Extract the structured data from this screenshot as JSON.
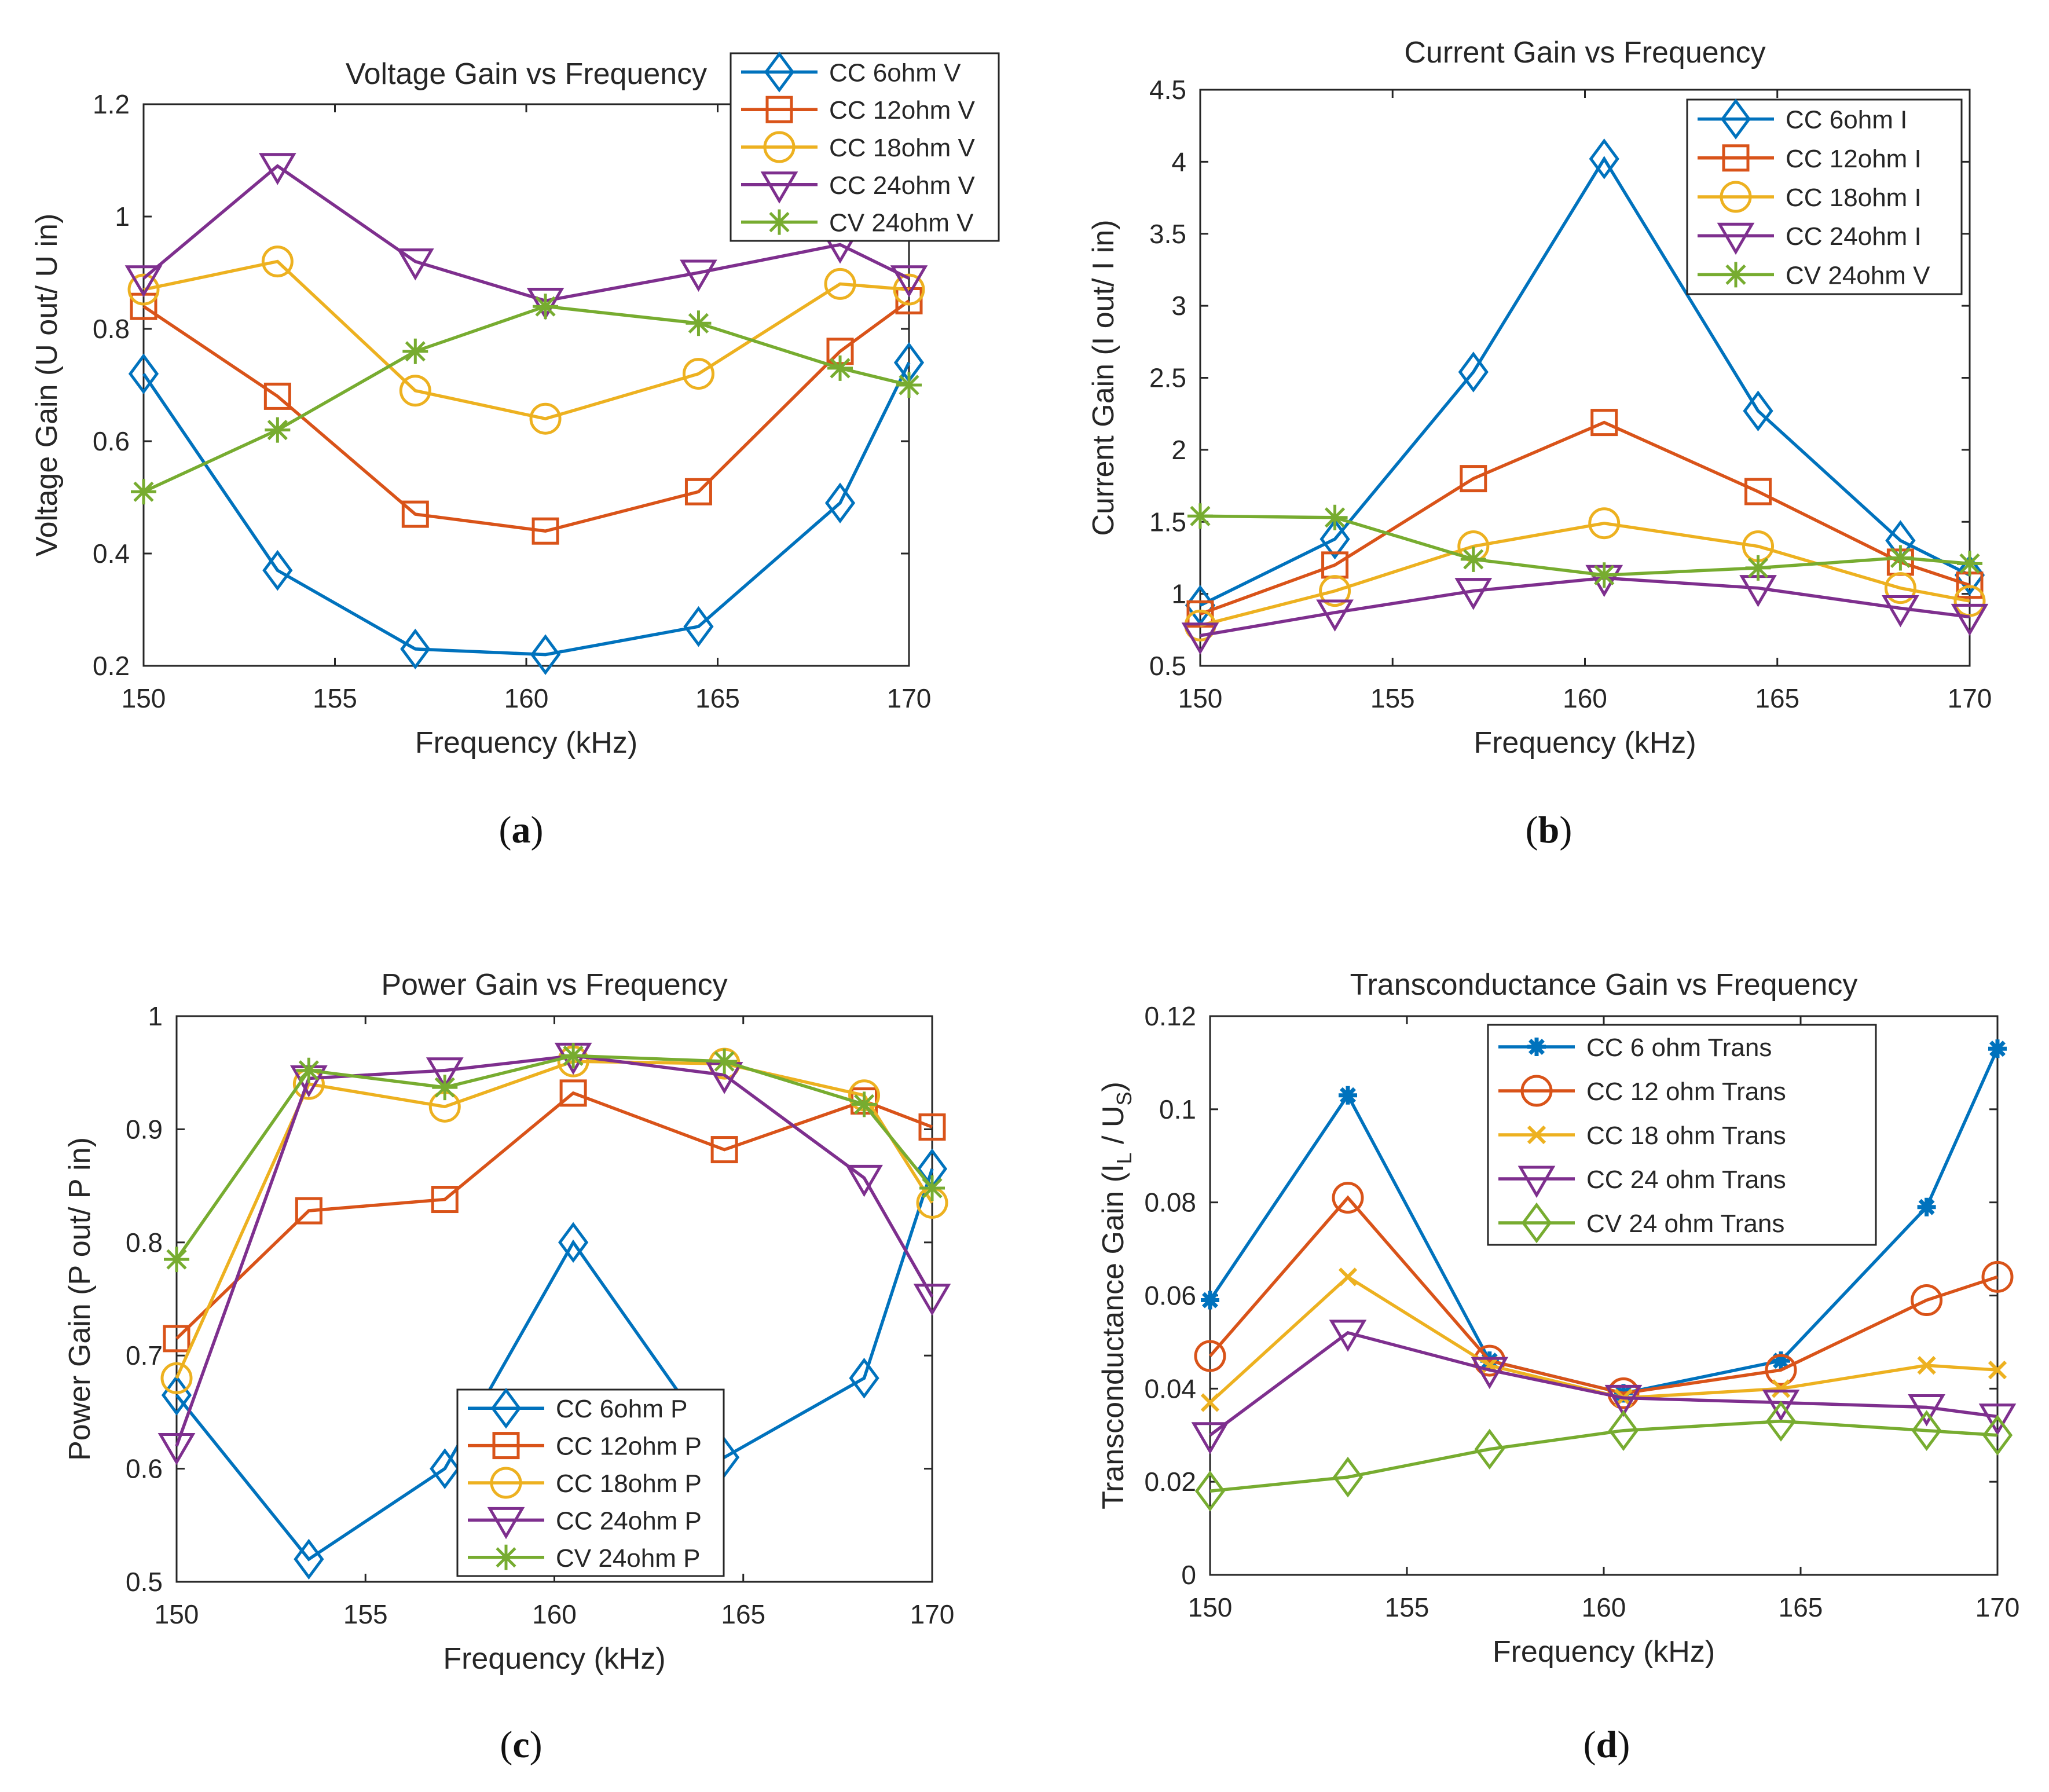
{
  "chart_data": [
    {
      "type": "line",
      "panel_label": "a",
      "title": "Voltage Gain vs Frequency",
      "xlabel": "Frequency (kHz)",
      "ylabel": "Voltage Gain (U out/ U in)",
      "xlim": [
        150,
        170
      ],
      "ylim": [
        0.2,
        1.2
      ],
      "xticks": [
        150,
        155,
        160,
        165,
        170
      ],
      "yticks": [
        0.2,
        0.4,
        0.6,
        0.8,
        1,
        1.2
      ],
      "ytick_labels": [
        "0.2",
        "0.4",
        "0.6",
        "0.8",
        "1",
        "1.2"
      ],
      "grid": false,
      "legend_position": "top-right",
      "x": [
        150,
        153.5,
        157.1,
        160.5,
        164.5,
        168.2,
        170
      ],
      "series": [
        {
          "name": "CC 6ohm V",
          "color": "#0072BD",
          "marker": "diamond",
          "values": [
            0.72,
            0.37,
            0.23,
            0.22,
            0.27,
            0.49,
            0.74
          ]
        },
        {
          "name": "CC 12ohm V",
          "color": "#D95319",
          "marker": "square",
          "values": [
            0.84,
            0.68,
            0.47,
            0.44,
            0.51,
            0.76,
            0.85
          ]
        },
        {
          "name": "CC 18ohm V",
          "color": "#EDB120",
          "marker": "circle",
          "values": [
            0.87,
            0.92,
            0.69,
            0.64,
            0.72,
            0.88,
            0.87
          ]
        },
        {
          "name": "CC 24ohm V",
          "color": "#7E2F8E",
          "marker": "triangle-down",
          "values": [
            0.89,
            1.09,
            0.92,
            0.85,
            0.9,
            0.95,
            0.89
          ]
        },
        {
          "name": "CV 24ohm V",
          "color": "#77AC30",
          "marker": "star",
          "values": [
            0.51,
            0.62,
            0.76,
            0.84,
            0.81,
            0.73,
            0.7
          ]
        }
      ]
    },
    {
      "type": "line",
      "panel_label": "b",
      "title": "Current Gain vs Frequency",
      "xlabel": "Frequency (kHz)",
      "ylabel": "Current Gain (I out/ I in)",
      "xlim": [
        150,
        170
      ],
      "ylim": [
        0.5,
        4.5
      ],
      "xticks": [
        150,
        155,
        160,
        165,
        170
      ],
      "yticks": [
        0.5,
        1,
        1.5,
        2,
        2.5,
        3,
        3.5,
        4,
        4.5
      ],
      "ytick_labels": [
        "0.5",
        "1",
        "1.5",
        "2",
        "2.5",
        "3",
        "3.5",
        "4",
        "4.5"
      ],
      "grid": false,
      "legend_position": "top-right",
      "x": [
        150,
        153.5,
        157.1,
        160.5,
        164.5,
        168.2,
        170
      ],
      "series": [
        {
          "name": "CC 6ohm I",
          "color": "#0072BD",
          "marker": "diamond",
          "values": [
            0.92,
            1.38,
            2.54,
            4.02,
            2.27,
            1.37,
            1.13
          ]
        },
        {
          "name": "CC 12ohm I",
          "color": "#D95319",
          "marker": "square",
          "values": [
            0.86,
            1.2,
            1.8,
            2.19,
            1.71,
            1.22,
            1.06
          ]
        },
        {
          "name": "CC 18ohm I",
          "color": "#EDB120",
          "marker": "circle",
          "values": [
            0.78,
            1.02,
            1.33,
            1.49,
            1.33,
            1.04,
            0.95
          ]
        },
        {
          "name": "CC 24ohm I",
          "color": "#7E2F8E",
          "marker": "triangle-down",
          "values": [
            0.71,
            0.87,
            1.02,
            1.11,
            1.04,
            0.9,
            0.84
          ]
        },
        {
          "name": "CV 24ohm V",
          "color": "#77AC30",
          "marker": "star",
          "values": [
            1.54,
            1.53,
            1.24,
            1.13,
            1.18,
            1.25,
            1.21
          ]
        }
      ]
    },
    {
      "type": "line",
      "panel_label": "c",
      "title": "Power Gain vs Frequency",
      "xlabel": "Frequency (kHz)",
      "ylabel": "Power Gain (P out/ P in)",
      "xlim": [
        150,
        170
      ],
      "ylim": [
        0.5,
        1
      ],
      "xticks": [
        150,
        155,
        160,
        165,
        170
      ],
      "yticks": [
        0.5,
        0.6,
        0.7,
        0.8,
        0.9,
        1
      ],
      "ytick_labels": [
        "0.5",
        "0.6",
        "0.7",
        "0.8",
        "0.9",
        "1"
      ],
      "grid": false,
      "legend_position": "bottom-right",
      "x": [
        150,
        153.5,
        157.1,
        160.5,
        164.5,
        168.2,
        170
      ],
      "series": [
        {
          "name": "CC 6ohm P",
          "color": "#0072BD",
          "marker": "diamond",
          "values": [
            0.665,
            0.52,
            0.6,
            0.8,
            0.61,
            0.68,
            0.865
          ]
        },
        {
          "name": "CC 12ohm P",
          "color": "#D95319",
          "marker": "square",
          "values": [
            0.715,
            0.828,
            0.838,
            0.932,
            0.882,
            0.925,
            0.902
          ]
        },
        {
          "name": "CC 18ohm P",
          "color": "#EDB120",
          "marker": "circle",
          "values": [
            0.68,
            0.94,
            0.92,
            0.96,
            0.958,
            0.93,
            0.835
          ]
        },
        {
          "name": "CC 24ohm P",
          "color": "#7E2F8E",
          "marker": "triangle-down",
          "values": [
            0.62,
            0.945,
            0.952,
            0.965,
            0.948,
            0.857,
            0.752
          ]
        },
        {
          "name": "CV 24ohm P",
          "color": "#77AC30",
          "marker": "star",
          "values": [
            0.785,
            0.952,
            0.937,
            0.965,
            0.96,
            0.922,
            0.848
          ]
        }
      ]
    },
    {
      "type": "line",
      "panel_label": "d",
      "title": "Transconductance Gain vs Frequency",
      "xlabel": "Frequency (kHz)",
      "ylabel_prefix": "Transconductance Gain (I",
      "ylabel_sub1": "L",
      "ylabel_mid": " / U",
      "ylabel_sub2": "S",
      "ylabel_suffix": ")",
      "xlim": [
        150,
        170
      ],
      "ylim": [
        0,
        0.12
      ],
      "xticks": [
        150,
        155,
        160,
        165,
        170
      ],
      "yticks": [
        0,
        0.02,
        0.04,
        0.06,
        0.08,
        0.1,
        0.12
      ],
      "ytick_labels": [
        "0",
        "0.02",
        "0.04",
        "0.06",
        "0.08",
        "0.1",
        "0.12"
      ],
      "grid": false,
      "legend_position": "top-center",
      "x": [
        150,
        153.5,
        157.1,
        160.5,
        164.5,
        168.2,
        170
      ],
      "series": [
        {
          "name": "CC 6 ohm Trans",
          "color": "#0072BD",
          "marker": "asterisk",
          "values": [
            0.059,
            0.103,
            0.046,
            0.039,
            0.046,
            0.079,
            0.113
          ]
        },
        {
          "name": "CC 12 ohm Trans",
          "color": "#D95319",
          "marker": "circle",
          "values": [
            0.047,
            0.081,
            0.046,
            0.039,
            0.044,
            0.059,
            0.064
          ]
        },
        {
          "name": "CC 18 ohm Trans",
          "color": "#EDB120",
          "marker": "x",
          "values": [
            0.037,
            0.064,
            0.045,
            0.038,
            0.04,
            0.045,
            0.044
          ]
        },
        {
          "name": "CC 24 ohm Trans",
          "color": "#7E2F8E",
          "marker": "triangle-down",
          "values": [
            0.03,
            0.052,
            0.044,
            0.038,
            0.037,
            0.036,
            0.034
          ]
        },
        {
          "name": "CV 24 ohm Trans",
          "color": "#77AC30",
          "marker": "diamond",
          "values": [
            0.018,
            0.021,
            0.027,
            0.031,
            0.033,
            0.031,
            0.03
          ]
        }
      ]
    }
  ]
}
